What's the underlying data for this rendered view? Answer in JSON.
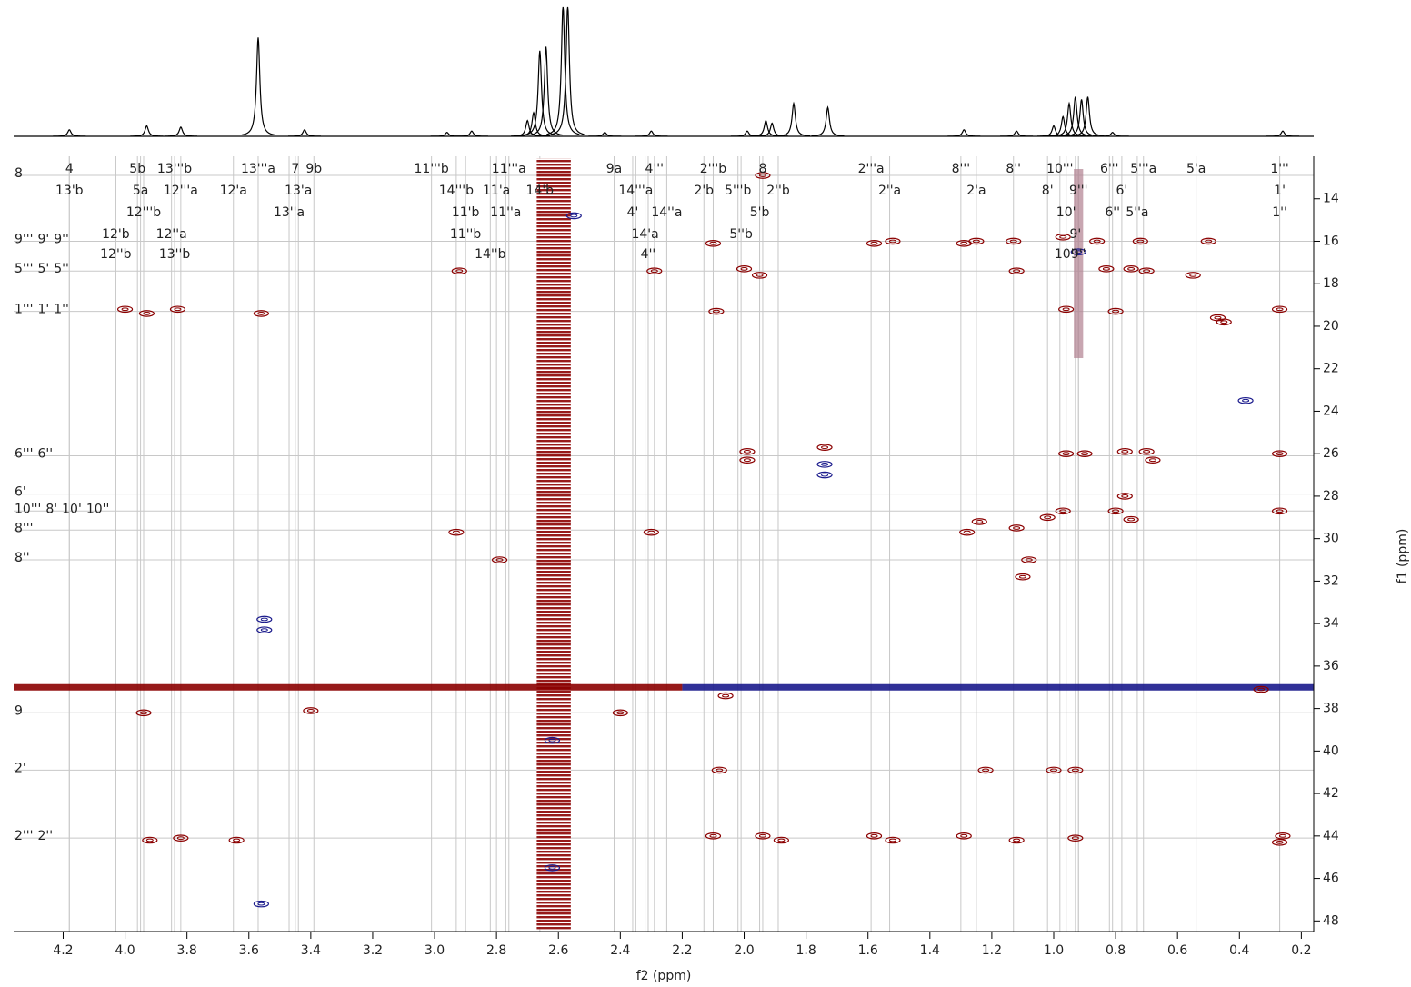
{
  "chart_data": {
    "type": "contour",
    "xlabel": "f2 (ppm)",
    "ylabel": "f1 (ppm)",
    "xlim": [
      4.36,
      0.16
    ],
    "ylim": [
      12,
      48.5
    ],
    "xticks": [
      4.2,
      {
        "value": 4,
        "label": "4.0"
      },
      3.8,
      3.6,
      3.4,
      3.2,
      {
        "value": 3,
        "label": "3.0"
      },
      2.8,
      2.6,
      2.4,
      2.2,
      {
        "value": 2,
        "label": "2.0"
      },
      1.8,
      1.6,
      1.4,
      1.2,
      {
        "value": 1,
        "label": "1.0"
      },
      0.8,
      0.6,
      0.4,
      0.2
    ],
    "yticks": [
      14,
      16,
      18,
      20,
      22,
      24,
      26,
      28,
      30,
      32,
      34,
      36,
      38,
      40,
      42,
      44,
      46,
      48
    ],
    "projection": {
      "x": [
        4.18,
        3.93,
        3.82,
        3.57,
        3.42,
        2.96,
        2.88,
        2.7,
        2.68,
        2.66,
        2.64,
        2.585,
        2.57,
        2.45,
        2.3,
        1.99,
        1.93,
        1.91,
        1.84,
        1.73,
        1.29,
        1.12,
        1.0,
        0.97,
        0.95,
        0.93,
        0.91,
        0.89,
        0.81,
        0.26
      ],
      "values": [
        5,
        8,
        7,
        75,
        5,
        3,
        4,
        12,
        18,
        65,
        68,
        100,
        100,
        3,
        4,
        4,
        12,
        10,
        25,
        22,
        5,
        4,
        8,
        15,
        25,
        30,
        28,
        30,
        3,
        4
      ]
    },
    "bands": [
      {
        "x": [
          2.67,
          2.56
        ],
        "y": [
          12.1,
          48.4
        ],
        "color": "#8b0000"
      },
      {
        "x": [
          4.36,
          2.2
        ],
        "y": [
          36.85,
          37.15
        ],
        "color": "#8b0000"
      },
      {
        "x": [
          2.2,
          0.16
        ],
        "y": [
          36.85,
          37.15
        ],
        "color": "#1a1a8c"
      },
      {
        "x": [
          0.935,
          0.905
        ],
        "y": [
          12.6,
          21.5
        ],
        "color": "#b08090"
      }
    ],
    "cross_peaks": [
      {
        "color": "#8b0000",
        "x": [
          1.58,
          1.52,
          1.25,
          1.13,
          0.97,
          0.86,
          0.72,
          0.5,
          2.1,
          1.29,
          2.29,
          2.0,
          1.95,
          0.75,
          0.7,
          0.55,
          1.12,
          0.83,
          2.92,
          4.0,
          3.93,
          3.83,
          3.56,
          2.09,
          0.96,
          0.8,
          0.27,
          0.47,
          0.45,
          1.74,
          1.99,
          1.99,
          0.77,
          0.7,
          0.68,
          0.96,
          0.9,
          0.27,
          0.77,
          0.97,
          1.02,
          0.8,
          0.27,
          1.24,
          0.75,
          2.93,
          1.28,
          1.12,
          2.3,
          2.79,
          1.08,
          1.1,
          3.4,
          3.94,
          2.4,
          2.08,
          1.22,
          1.0,
          0.93,
          3.92,
          3.82,
          3.64,
          2.1,
          1.94,
          1.88,
          1.58,
          1.52,
          1.29,
          1.12,
          0.93,
          0.26,
          0.27,
          2.06,
          0.33,
          1.94
        ],
        "y": [
          16.1,
          16.0,
          16.0,
          16.0,
          15.8,
          16.0,
          16.0,
          16.0,
          16.1,
          16.1,
          17.4,
          17.3,
          17.6,
          17.3,
          17.4,
          17.6,
          17.4,
          17.3,
          17.4,
          19.2,
          19.4,
          19.2,
          19.4,
          19.3,
          19.2,
          19.3,
          19.2,
          19.6,
          19.8,
          25.7,
          25.9,
          26.3,
          25.9,
          25.9,
          26.3,
          26.0,
          26.0,
          26.0,
          28.0,
          28.7,
          29.0,
          28.7,
          28.7,
          29.2,
          29.1,
          29.7,
          29.7,
          29.5,
          29.7,
          31.0,
          31.0,
          31.8,
          38.1,
          38.2,
          38.2,
          40.9,
          40.9,
          40.9,
          40.9,
          44.2,
          44.1,
          44.2,
          44.0,
          44.0,
          44.2,
          44.0,
          44.2,
          44.0,
          44.2,
          44.1,
          44.0,
          44.3,
          37.4,
          37.1,
          12.9
        ]
      },
      {
        "color": "#1a1a8c",
        "x": [
          3.55,
          3.55,
          3.56,
          0.92,
          2.55,
          0.38,
          1.74,
          1.74,
          2.62,
          2.62
        ],
        "y": [
          34.3,
          33.8,
          47.2,
          16.5,
          14.8,
          23.5,
          26.5,
          27.0,
          39.5,
          45.5
        ]
      }
    ],
    "x_annotation_rows": [
      [
        {
          "label": "4",
          "x": 4.18
        },
        {
          "label": "5b",
          "x": 3.96
        },
        {
          "label": "13'''b",
          "x": 3.84
        },
        {
          "label": "13'''a",
          "x": 3.57
        },
        {
          "label": "7",
          "x": 3.45
        },
        {
          "label": "9b",
          "x": 3.39
        },
        {
          "label": "11'''b",
          "x": 3.01
        },
        {
          "label": "11'''a",
          "x": 2.76
        },
        {
          "label": "9a",
          "x": 2.42
        },
        {
          "label": "4'''",
          "x": 2.29
        },
        {
          "label": "2'''b",
          "x": 2.1
        },
        {
          "label": "8",
          "x": 1.94
        },
        {
          "label": "2'''a",
          "x": 1.59
        },
        {
          "label": "8'''",
          "x": 1.3
        },
        {
          "label": "8''",
          "x": 1.13
        },
        {
          "label": "10'''",
          "x": 0.98
        },
        {
          "label": "6'''",
          "x": 0.82
        },
        {
          "label": "5'''a",
          "x": 0.71
        },
        {
          "label": "5'a",
          "x": 0.54
        },
        {
          "label": "1'''",
          "x": 0.27
        }
      ],
      [
        {
          "label": "13'b",
          "x": 4.18
        },
        {
          "label": "5a",
          "x": 3.95
        },
        {
          "label": "12'''a",
          "x": 3.82
        },
        {
          "label": "12'a",
          "x": 3.65
        },
        {
          "label": "13'a",
          "x": 3.44
        },
        {
          "label": "14'''b",
          "x": 2.93
        },
        {
          "label": "11'a",
          "x": 2.8
        },
        {
          "label": "14'b",
          "x": 2.66
        },
        {
          "label": "14'''a",
          "x": 2.35
        },
        {
          "label": "2'b",
          "x": 2.13
        },
        {
          "label": "5'''b",
          "x": 2.02
        },
        {
          "label": "2''b",
          "x": 1.89
        },
        {
          "label": "2''a",
          "x": 1.53
        },
        {
          "label": "2'a",
          "x": 1.25
        },
        {
          "label": "8'",
          "x": 1.02
        },
        {
          "label": "9'''",
          "x": 0.92
        },
        {
          "label": "6'",
          "x": 0.78
        },
        {
          "label": "1'",
          "x": 0.27
        }
      ],
      [
        {
          "label": "12'''b",
          "x": 3.94
        },
        {
          "label": "13''a",
          "x": 3.47
        },
        {
          "label": "11'b",
          "x": 2.9
        },
        {
          "label": "11''a",
          "x": 2.77
        },
        {
          "label": "4'",
          "x": 2.36
        },
        {
          "label": "14''a",
          "x": 2.25
        },
        {
          "label": "5'b",
          "x": 1.95
        },
        {
          "label": "10'",
          "x": 0.96
        },
        {
          "label": "6''",
          "x": 0.81
        },
        {
          "label": "5''a",
          "x": 0.73
        },
        {
          "label": "1''",
          "x": 0.27
        }
      ],
      [
        {
          "label": "12'b",
          "x": 4.03
        },
        {
          "label": "12''a",
          "x": 3.85
        },
        {
          "label": "11''b",
          "x": 2.9
        },
        {
          "label": "14'a",
          "x": 2.32
        },
        {
          "label": "5''b",
          "x": 2.01
        },
        {
          "label": "9'",
          "x": 0.93
        }
      ],
      [
        {
          "label": "12''b",
          "x": 4.03
        },
        {
          "label": "13''b",
          "x": 3.84
        },
        {
          "label": "14''b",
          "x": 2.82
        },
        {
          "label": "4''",
          "x": 2.31
        },
        {
          "label": "10''",
          "x": 0.96
        },
        {
          "label": "9''",
          "x": 0.92
        }
      ]
    ],
    "y_annotation_groups": [
      {
        "y": 12.9,
        "labels": [
          "8"
        ]
      },
      {
        "y": 16.0,
        "labels": [
          "9'''",
          "9'",
          "9''"
        ]
      },
      {
        "y": 17.4,
        "labels": [
          "5'''",
          "5'",
          "5''"
        ]
      },
      {
        "y": 19.3,
        "labels": [
          "1'''",
          "1'",
          "1''"
        ]
      },
      {
        "y": 26.1,
        "labels": [
          "6'''",
          "6''"
        ]
      },
      {
        "y": 27.9,
        "labels": [
          "6'"
        ]
      },
      {
        "y": 28.7,
        "labels": [
          "10'''",
          "8'",
          "10'",
          "10''"
        ]
      },
      {
        "y": 29.6,
        "labels": [
          "8'''"
        ]
      },
      {
        "y": 31.0,
        "labels": [
          "8''"
        ]
      },
      {
        "y": 38.2,
        "labels": [
          "9"
        ]
      },
      {
        "y": 40.9,
        "labels": [
          "2'"
        ]
      },
      {
        "y": 44.1,
        "labels": [
          "2'''",
          "2''"
        ]
      }
    ]
  }
}
